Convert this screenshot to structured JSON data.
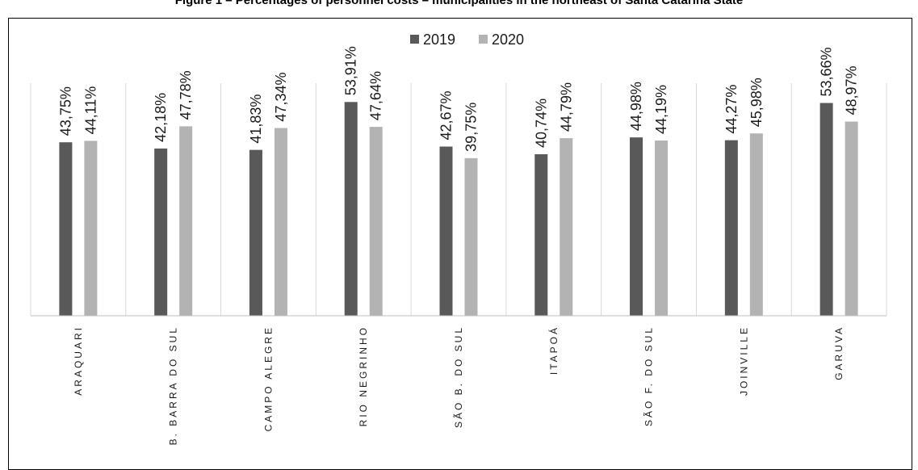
{
  "figure": {
    "title": "Figure 1 – Percentages of personnel costs – municipalities in the northeast of Santa Catarina State"
  },
  "chart_data": {
    "type": "bar",
    "categories": [
      "ARAQUARI",
      "B. BARRA DO SUL",
      "CAMPO ALEGRE",
      "RIO NEGRINHO",
      "SÃO B. DO SUL",
      "ITAPOÁ",
      "SÃO F. DO SUL",
      "JOINVILLE",
      "GARUVA"
    ],
    "series": [
      {
        "name": "2019",
        "color": "#595959",
        "values": [
          43.75,
          42.18,
          41.83,
          53.91,
          42.67,
          40.74,
          44.98,
          44.27,
          53.66
        ],
        "labels": [
          "43,75%",
          "42,18%",
          "41,83%",
          "53,91%",
          "42,67%",
          "40,74%",
          "44,98%",
          "44,27%",
          "53,66%"
        ]
      },
      {
        "name": "2020",
        "color": "#b3b3b3",
        "values": [
          44.11,
          47.78,
          47.34,
          47.64,
          39.75,
          44.79,
          44.19,
          45.98,
          48.97
        ],
        "labels": [
          "44,11%",
          "47,78%",
          "47,34%",
          "47,64%",
          "39,75%",
          "44,79%",
          "44,19%",
          "45,98%",
          "48,97%"
        ]
      }
    ],
    "ylim": [
      0,
      65
    ],
    "grid": true,
    "legend": "top-center",
    "xlabel": "",
    "ylabel": ""
  }
}
